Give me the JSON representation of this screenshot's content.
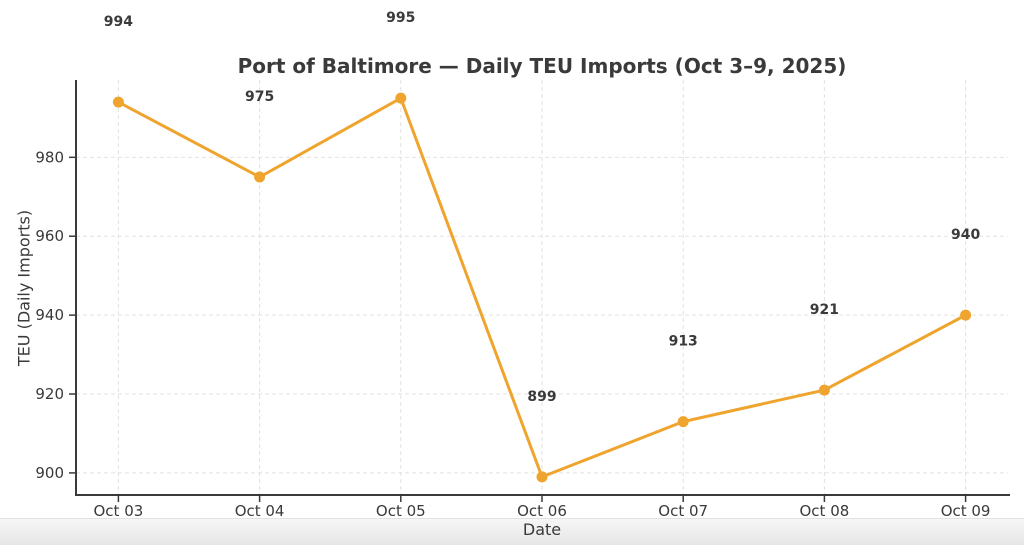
{
  "chart_data": {
    "type": "line",
    "title": "Port of Baltimore — Daily TEU Imports (Oct 3–9, 2025)",
    "xlabel": "Date",
    "ylabel": "TEU (Daily Imports)",
    "categories": [
      "Oct 03",
      "Oct 04",
      "Oct 05",
      "Oct 06",
      "Oct 07",
      "Oct 08",
      "Oct 09"
    ],
    "values": [
      994,
      975,
      995,
      899,
      913,
      921,
      940
    ],
    "point_labels": [
      "994",
      "975",
      "995",
      "899",
      "913",
      "921",
      "940"
    ],
    "yticks": [
      900,
      920,
      940,
      960,
      980
    ],
    "ylim": [
      894.4,
      999.6
    ],
    "grid": "dashed",
    "legend": "none",
    "colors": {
      "line": "#EFA42D",
      "marker": "#EFA42D",
      "text": "#3A3A3A",
      "grid": "#E2E2E2",
      "spine": "#3A3A3A"
    }
  }
}
